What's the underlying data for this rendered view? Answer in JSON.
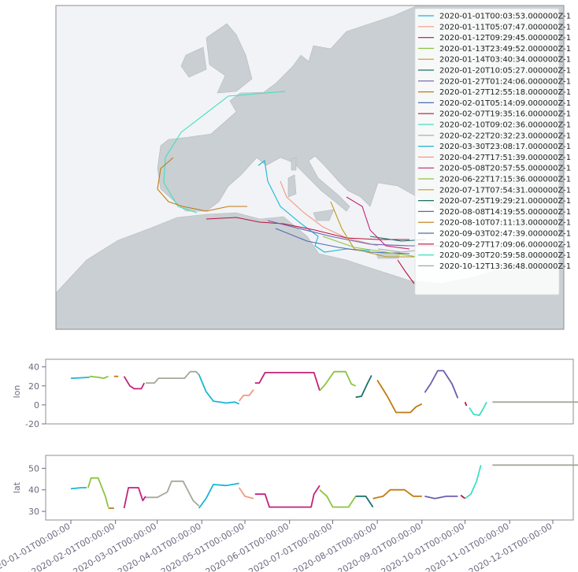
{
  "chart_data": [
    {
      "type": "map",
      "description_kind": "vessel tracks",
      "legend_placement": "top-right",
      "grid": false,
      "colors": {
        "land": "#c9cfd2",
        "sea": "#f1f3f6",
        "frame": "#8c8f95"
      },
      "series": [
        {
          "name": "2020-01-01T00:03:53.000000Z-1",
          "color": "#1ab7d6"
        },
        {
          "name": "2020-01-11T05:07:47.000000Z-1",
          "color": "#f29a83"
        },
        {
          "name": "2020-01-12T09:29:45.000000Z-1",
          "color": "#c3217b"
        },
        {
          "name": "2020-01-13T23:49:52.000000Z-1",
          "color": "#8bc53f"
        },
        {
          "name": "2020-01-14T03:40:34.000000Z-1",
          "color": "#c09a1c"
        },
        {
          "name": "2020-01-20T10:05:27.000000Z-1",
          "color": "#1a6f6b"
        },
        {
          "name": "2020-01-27T01:24:06.000000Z-1",
          "color": "#6b5fb0"
        },
        {
          "name": "2020-01-27T12:55:18.000000Z-1",
          "color": "#c27a12"
        },
        {
          "name": "2020-02-01T05:14:09.000000Z-1",
          "color": "#4f6cb0"
        },
        {
          "name": "2020-02-07T19:35:16.000000Z-1",
          "color": "#b8143c"
        },
        {
          "name": "2020-02-10T09:02:36.000000Z-1",
          "color": "#3fe0c0"
        },
        {
          "name": "2020-02-22T20:32:23.000000Z-1",
          "color": "#a8a79b"
        },
        {
          "name": "2020-03-30T23:08:17.000000Z-1",
          "color": "#1ab7d6"
        },
        {
          "name": "2020-04-27T17:51:39.000000Z-1",
          "color": "#f29a83"
        },
        {
          "name": "2020-05-08T20:57:55.000000Z-1",
          "color": "#c3217b"
        },
        {
          "name": "2020-06-22T17:15:36.000000Z-1",
          "color": "#8bc53f"
        },
        {
          "name": "2020-07-17T07:54:31.000000Z-1",
          "color": "#c09a1c"
        },
        {
          "name": "2020-07-25T19:29:21.000000Z-1",
          "color": "#1a6f6b"
        },
        {
          "name": "2020-08-08T14:19:55.000000Z-1",
          "color": "#6b5fb0"
        },
        {
          "name": "2020-08-10T07:11:13.000000Z-1",
          "color": "#c27a12"
        },
        {
          "name": "2020-09-03T02:47:39.000000Z-1",
          "color": "#4f6cb0"
        },
        {
          "name": "2020-09-27T17:09:06.000000Z-1",
          "color": "#b8143c"
        },
        {
          "name": "2020-09-30T20:59:58.000000Z-1",
          "color": "#3fe0c0"
        },
        {
          "name": "2020-10-12T13:36:48.000000Z-1",
          "color": "#a8a79b"
        }
      ]
    },
    {
      "type": "line",
      "ylabel": "lon",
      "xlabel": "",
      "ylim": [
        -20,
        48
      ],
      "yticks": [
        -20,
        0,
        20,
        40
      ],
      "grid": false,
      "segments": [
        {
          "color": "#1ab7d6",
          "points": [
            [
              "2020-01-01",
              28
            ],
            [
              "2020-01-08",
              28.5
            ],
            [
              "2020-01-14",
              29
            ]
          ]
        },
        {
          "color": "#8bc53f",
          "points": [
            [
              "2020-01-14",
              30
            ],
            [
              "2020-01-20",
              29
            ],
            [
              "2020-01-24",
              28
            ],
            [
              "2020-01-27",
              30
            ]
          ]
        },
        {
          "color": "#c27a12",
          "points": [
            [
              "2020-01-31",
              30
            ],
            [
              "2020-02-03",
              30
            ]
          ]
        },
        {
          "color": "#c3217b",
          "points": [
            [
              "2020-02-07",
              30
            ],
            [
              "2020-02-11",
              20
            ],
            [
              "2020-02-14",
              17
            ],
            [
              "2020-02-19",
              17
            ],
            [
              "2020-02-21",
              23
            ]
          ]
        },
        {
          "color": "#a8a79b",
          "points": [
            [
              "2020-02-22",
              23
            ],
            [
              "2020-02-28",
              23
            ],
            [
              "2020-03-02",
              28
            ],
            [
              "2020-03-12",
              28
            ],
            [
              "2020-03-20",
              28
            ],
            [
              "2020-03-24",
              35
            ],
            [
              "2020-03-28",
              35
            ],
            [
              "2020-03-30",
              32
            ]
          ]
        },
        {
          "color": "#1ab7d6",
          "points": [
            [
              "2020-03-30",
              32
            ],
            [
              "2020-04-04",
              14
            ],
            [
              "2020-04-09",
              4
            ],
            [
              "2020-04-18",
              2
            ],
            [
              "2020-04-24",
              3
            ],
            [
              "2020-04-27",
              1
            ]
          ]
        },
        {
          "color": "#f29a83",
          "points": [
            [
              "2020-04-27",
              4
            ],
            [
              "2020-04-30",
              10
            ],
            [
              "2020-05-04",
              10
            ],
            [
              "2020-05-07",
              16
            ]
          ]
        },
        {
          "color": "#c3217b",
          "points": [
            [
              "2020-05-08",
              23
            ],
            [
              "2020-05-11",
              23
            ],
            [
              "2020-05-15",
              34
            ],
            [
              "2020-06-05",
              34
            ],
            [
              "2020-06-18",
              34
            ],
            [
              "2020-06-22",
              15
            ]
          ]
        },
        {
          "color": "#8bc53f",
          "points": [
            [
              "2020-06-22",
              15
            ],
            [
              "2020-06-26",
              22
            ],
            [
              "2020-07-02",
              35
            ],
            [
              "2020-07-10",
              35
            ],
            [
              "2020-07-14",
              22
            ],
            [
              "2020-07-17",
              20
            ]
          ]
        },
        {
          "color": "#1a6f6b",
          "points": [
            [
              "2020-07-17",
              8
            ],
            [
              "2020-07-21",
              9
            ],
            [
              "2020-07-25",
              22
            ],
            [
              "2020-07-28",
              31
            ]
          ]
        },
        {
          "color": "#c27a12",
          "points": [
            [
              "2020-08-01",
              26
            ],
            [
              "2020-08-08",
              9
            ],
            [
              "2020-08-14",
              -8
            ],
            [
              "2020-08-24",
              -8
            ],
            [
              "2020-08-28",
              -2
            ],
            [
              "2020-09-01",
              1
            ]
          ]
        },
        {
          "color": "#6b5fb0",
          "points": [
            [
              "2020-09-03",
              13
            ],
            [
              "2020-09-07",
              22
            ],
            [
              "2020-09-12",
              36
            ],
            [
              "2020-09-16",
              36
            ],
            [
              "2020-09-22",
              22
            ],
            [
              "2020-09-26",
              7
            ]
          ]
        },
        {
          "color": "#b8143c",
          "points": [
            [
              "2020-10-01",
              3
            ],
            [
              "2020-10-02",
              -1
            ]
          ]
        },
        {
          "color": "#3fe0c0",
          "points": [
            [
              "2020-10-04",
              -3
            ],
            [
              "2020-10-07",
              -10
            ],
            [
              "2020-10-11",
              -11
            ],
            [
              "2020-10-14",
              -3
            ],
            [
              "2020-10-16",
              3
            ]
          ]
        },
        {
          "color": "#a8a79b",
          "points": [
            [
              "2020-10-20",
              3
            ],
            [
              "2020-12-23",
              3
            ]
          ]
        }
      ]
    },
    {
      "type": "line",
      "ylabel": "lat",
      "xlabel": "",
      "ylim": [
        26,
        56
      ],
      "yticks": [
        30,
        40,
        50
      ],
      "grid": false,
      "xticks": [
        "2020-01-01T00:00:00",
        "2020-02-01T00:00:00",
        "2020-03-01T00:00:00",
        "2020-04-01T00:00:00",
        "2020-05-01T00:00:00",
        "2020-06-01T00:00:00",
        "2020-07-01T00:00:00",
        "2020-08-01T00:00:00",
        "2020-09-01T00:00:00",
        "2020-10-01T00:00:00",
        "2020-11-01T00:00:00",
        "2020-12-01T00:00:00"
      ],
      "segments": [
        {
          "color": "#1ab7d6",
          "points": [
            [
              "2020-01-01",
              40.5
            ],
            [
              "2020-01-08",
              41
            ],
            [
              "2020-01-12",
              41
            ]
          ]
        },
        {
          "color": "#8bc53f",
          "points": [
            [
              "2020-01-13",
              41
            ],
            [
              "2020-01-15",
              45.5
            ],
            [
              "2020-01-20",
              45.5
            ],
            [
              "2020-01-25",
              37
            ],
            [
              "2020-01-27",
              32
            ]
          ]
        },
        {
          "color": "#c27a12",
          "points": [
            [
              "2020-01-27",
              31.5
            ],
            [
              "2020-01-31",
              31.5
            ]
          ]
        },
        {
          "color": "#c3217b",
          "points": [
            [
              "2020-02-07",
              31.5
            ],
            [
              "2020-02-10",
              41
            ],
            [
              "2020-02-17",
              41
            ],
            [
              "2020-02-20",
              35
            ],
            [
              "2020-02-22",
              37
            ]
          ]
        },
        {
          "color": "#a8a79b",
          "points": [
            [
              "2020-02-22",
              36.5
            ],
            [
              "2020-03-01",
              36.5
            ],
            [
              "2020-03-08",
              39
            ],
            [
              "2020-03-11",
              44
            ],
            [
              "2020-03-19",
              44
            ],
            [
              "2020-03-26",
              35
            ],
            [
              "2020-03-30",
              32.5
            ]
          ]
        },
        {
          "color": "#1ab7d6",
          "points": [
            [
              "2020-03-30",
              31.5
            ],
            [
              "2020-04-04",
              36
            ],
            [
              "2020-04-09",
              42.5
            ],
            [
              "2020-04-18",
              42
            ],
            [
              "2020-04-27",
              43
            ]
          ]
        },
        {
          "color": "#f29a83",
          "points": [
            [
              "2020-04-27",
              41
            ],
            [
              "2020-05-01",
              37
            ],
            [
              "2020-05-07",
              36
            ]
          ]
        },
        {
          "color": "#c3217b",
          "points": [
            [
              "2020-05-08",
              38
            ],
            [
              "2020-05-15",
              38
            ],
            [
              "2020-05-18",
              32
            ],
            [
              "2020-06-16",
              32
            ],
            [
              "2020-06-18",
              38
            ],
            [
              "2020-06-22",
              42
            ]
          ]
        },
        {
          "color": "#8bc53f",
          "points": [
            [
              "2020-06-22",
              40
            ],
            [
              "2020-06-27",
              37
            ],
            [
              "2020-07-01",
              32
            ],
            [
              "2020-07-12",
              32
            ],
            [
              "2020-07-17",
              37
            ]
          ]
        },
        {
          "color": "#1a6f6b",
          "points": [
            [
              "2020-07-17",
              37
            ],
            [
              "2020-07-24",
              37
            ],
            [
              "2020-07-29",
              32
            ]
          ]
        },
        {
          "color": "#c27a12",
          "points": [
            [
              "2020-07-29",
              36
            ],
            [
              "2020-08-05",
              37
            ],
            [
              "2020-08-10",
              40
            ],
            [
              "2020-08-20",
              40
            ],
            [
              "2020-08-26",
              37
            ],
            [
              "2020-09-01",
              37
            ]
          ]
        },
        {
          "color": "#6b5fb0",
          "points": [
            [
              "2020-09-03",
              37
            ],
            [
              "2020-09-10",
              36
            ],
            [
              "2020-09-18",
              37
            ],
            [
              "2020-09-26",
              37
            ]
          ]
        },
        {
          "color": "#b8143c",
          "points": [
            [
              "2020-09-28",
              37.5
            ],
            [
              "2020-10-01",
              36
            ]
          ]
        },
        {
          "color": "#3fe0c0",
          "points": [
            [
              "2020-10-01",
              36
            ],
            [
              "2020-10-05",
              38
            ],
            [
              "2020-10-09",
              44
            ],
            [
              "2020-10-12",
              51.5
            ]
          ]
        },
        {
          "color": "#a8a79b",
          "points": [
            [
              "2020-10-20",
              51.5
            ],
            [
              "2020-12-23",
              51.5
            ]
          ]
        }
      ]
    }
  ]
}
